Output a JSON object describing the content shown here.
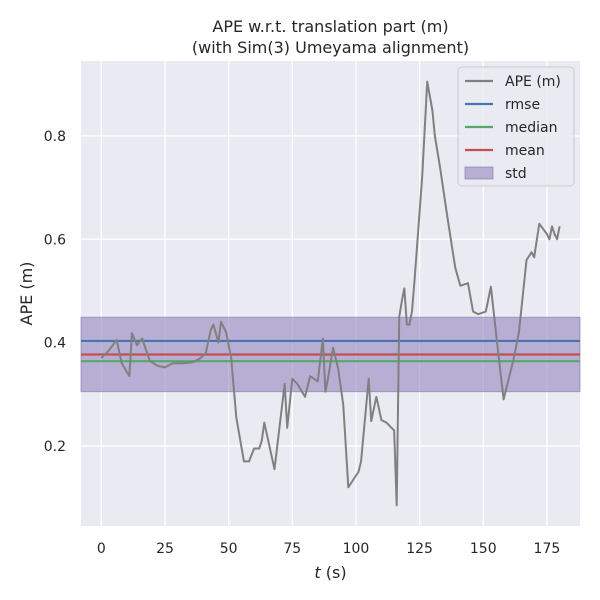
{
  "chart_data": {
    "type": "line",
    "title": "APE w.r.t. translation part (m)",
    "subtitle": "(with Sim(3) Umeyama alignment)",
    "xlabel_italic": "t",
    "xlabel_rest": " (s)",
    "ylabel": "APE (m)",
    "xlim": [
      -8,
      188
    ],
    "ylim": [
      0.045,
      0.945
    ],
    "xticks": [
      0,
      25,
      50,
      75,
      100,
      125,
      150,
      175
    ],
    "yticks": [
      0.2,
      0.4,
      0.6,
      0.8
    ],
    "ytick_labels": [
      "0.2",
      "0.4",
      "0.6",
      "0.8"
    ],
    "grid": true,
    "legend_position": "top-right",
    "series": [
      {
        "name": "APE (m)",
        "color": "#808080",
        "x": [
          0,
          3,
          6,
          8,
          11,
          12,
          14,
          16,
          19,
          22,
          25,
          28,
          32,
          36,
          39,
          41,
          43,
          44,
          46,
          47,
          49,
          51,
          53,
          56,
          58,
          60,
          62,
          63,
          64,
          66,
          68,
          72,
          73,
          75,
          77,
          80,
          82,
          85,
          87,
          88,
          89,
          91,
          93,
          95,
          97,
          99,
          101,
          102,
          105,
          106,
          108,
          110,
          112,
          115,
          116,
          117,
          118,
          119,
          120,
          121,
          122,
          123,
          126,
          128,
          130,
          131,
          133,
          136,
          139,
          141,
          144,
          146,
          148,
          151,
          153,
          156,
          158,
          160,
          162,
          164,
          167,
          169,
          170,
          172,
          175,
          176,
          177,
          178,
          179,
          180
        ],
        "y": [
          0.37,
          0.385,
          0.405,
          0.36,
          0.335,
          0.418,
          0.395,
          0.408,
          0.365,
          0.355,
          0.352,
          0.36,
          0.36,
          0.362,
          0.37,
          0.38,
          0.425,
          0.435,
          0.4,
          0.44,
          0.42,
          0.37,
          0.255,
          0.17,
          0.17,
          0.195,
          0.195,
          0.21,
          0.245,
          0.2,
          0.155,
          0.32,
          0.235,
          0.33,
          0.32,
          0.295,
          0.335,
          0.325,
          0.408,
          0.305,
          0.33,
          0.39,
          0.35,
          0.28,
          0.12,
          0.135,
          0.15,
          0.17,
          0.33,
          0.248,
          0.295,
          0.25,
          0.245,
          0.23,
          0.085,
          0.45,
          0.48,
          0.505,
          0.435,
          0.435,
          0.46,
          0.52,
          0.72,
          0.905,
          0.85,
          0.8,
          0.74,
          0.64,
          0.545,
          0.51,
          0.515,
          0.46,
          0.455,
          0.46,
          0.508,
          0.375,
          0.29,
          0.33,
          0.37,
          0.42,
          0.56,
          0.575,
          0.565,
          0.63,
          0.61,
          0.6,
          0.625,
          0.61,
          0.6,
          0.625
        ]
      },
      {
        "name": "rmse",
        "color": "#4c72b0",
        "value": 0.403
      },
      {
        "name": "median",
        "color": "#55a868",
        "value": 0.364
      },
      {
        "name": "mean",
        "color": "#c44e52",
        "value": 0.377
      },
      {
        "name": "std",
        "color": "#8172b3",
        "range": [
          0.305,
          0.449
        ]
      }
    ]
  }
}
